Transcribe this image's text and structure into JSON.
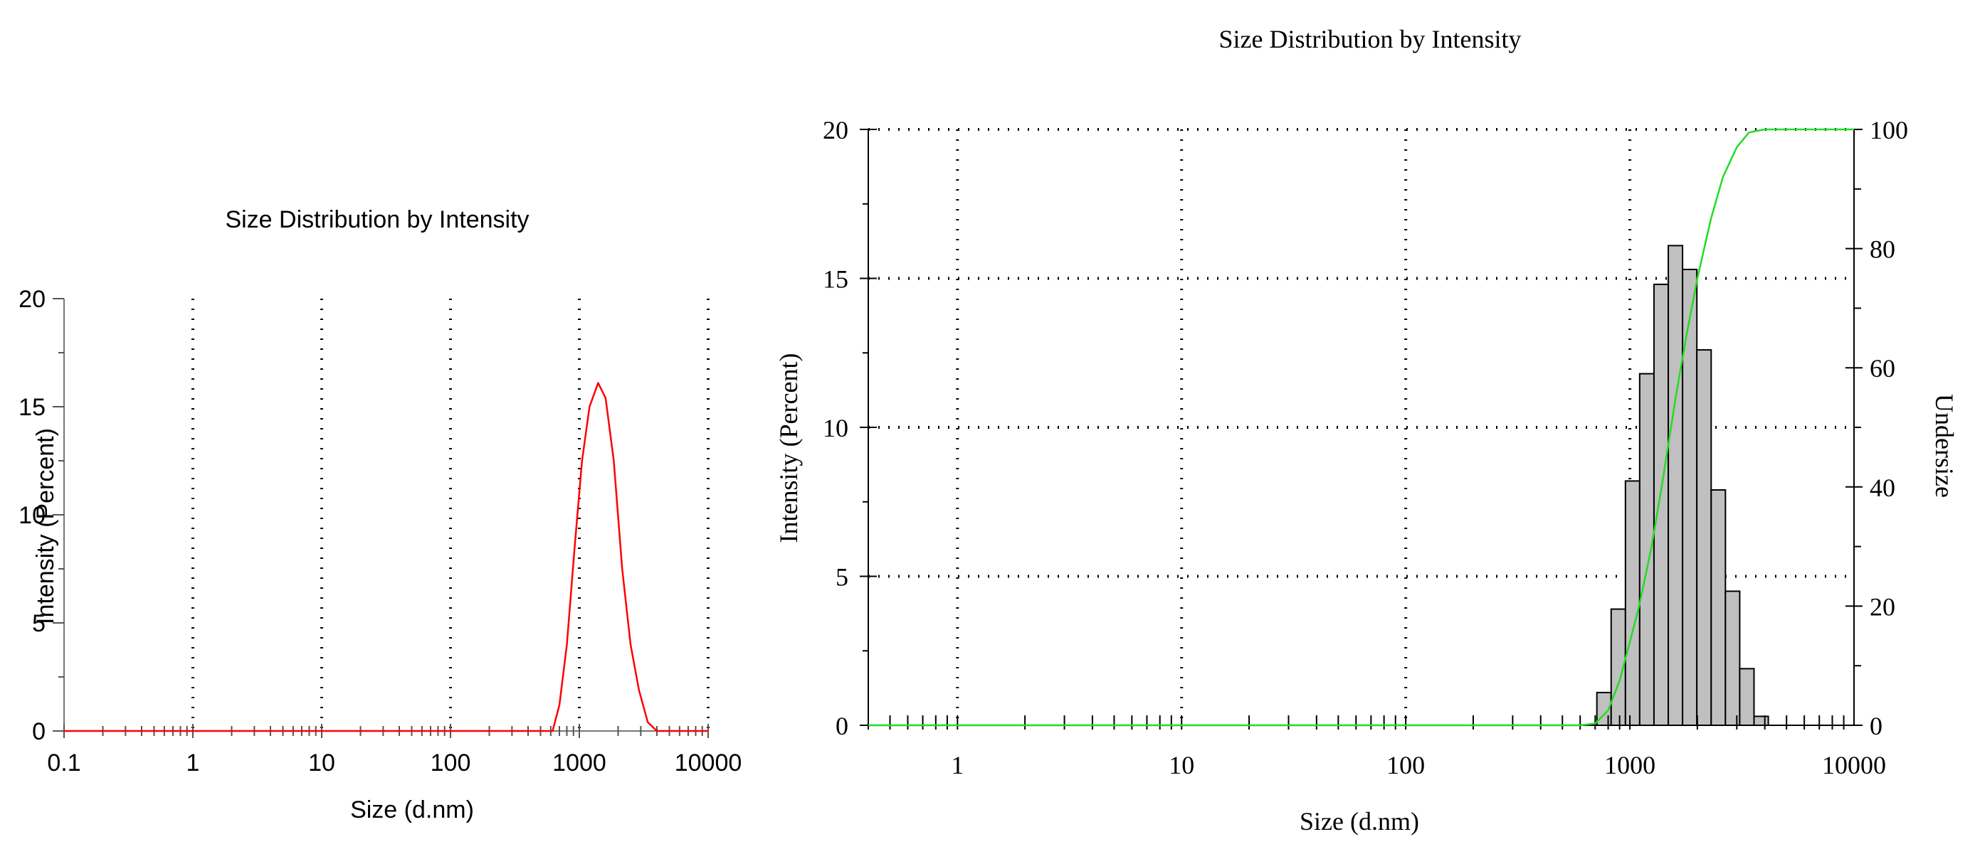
{
  "chart_data": [
    {
      "type": "line",
      "title": "Size Distribution by Intensity",
      "xlabel": "Size (d.nm)",
      "ylabel": "Intensity (Percent)",
      "xscale": "log",
      "xlim": [
        0.1,
        10000
      ],
      "ylim": [
        0,
        20
      ],
      "x_ticks": [
        "0.1",
        "1",
        "10",
        "100",
        "1000",
        "10000"
      ],
      "y_ticks": [
        "0",
        "5",
        "10",
        "15",
        "20"
      ],
      "grid": "vertical dotted lines at decades",
      "series": [
        {
          "color": "#ff0000",
          "x": [
            0.1,
            500,
            620,
            700,
            800,
            920,
            1050,
            1200,
            1400,
            1600,
            1850,
            2150,
            2500,
            2900,
            3400,
            4000,
            10000
          ],
          "y": [
            0,
            0,
            0,
            1.2,
            4.0,
            8.5,
            12.5,
            15.0,
            16.1,
            15.4,
            12.5,
            7.5,
            4.0,
            1.9,
            0.4,
            0,
            0
          ]
        }
      ]
    },
    {
      "type": "bar",
      "title": "Size Distribution by Intensity",
      "xlabel": "Size (d.nm)",
      "ylabel": "Intensity (Percent)",
      "y2label": "Undersize",
      "xscale": "log",
      "xlim": [
        0.4,
        10000
      ],
      "ylim": [
        0,
        20
      ],
      "y2lim": [
        0,
        100
      ],
      "x_ticks": [
        "1",
        "10",
        "100",
        "1000",
        "10000"
      ],
      "y_ticks": [
        "0",
        "5",
        "10",
        "15",
        "20"
      ],
      "y2_ticks": [
        "0",
        "20",
        "40",
        "60",
        "80",
        "100"
      ],
      "grid": "dotted, decades and every 5 percent",
      "bars": {
        "color": "#c0c0c0",
        "x": [
          615.1,
          712.4,
          825.0,
          955.4,
          1106.0,
          1281.0,
          1484.0,
          1718.0,
          1990.0,
          2305.0,
          2669.0,
          3091.0,
          3580.0
        ],
        "y": [
          0.0,
          1.1,
          3.9,
          8.2,
          11.8,
          14.8,
          16.1,
          15.3,
          12.6,
          7.9,
          4.5,
          1.9,
          0.3
        ]
      },
      "undersize": {
        "color": "#22dd22",
        "x": [
          0.4,
          600,
          700,
          800,
          900,
          1000,
          1100,
          1250,
          1400,
          1600,
          1800,
          2000,
          2300,
          2600,
          3000,
          3400,
          4000,
          10000
        ],
        "y": [
          0,
          0,
          0.3,
          2.5,
          7.5,
          14,
          20,
          30,
          41,
          55,
          66,
          75,
          85,
          92,
          97,
          99.5,
          100,
          100
        ]
      }
    }
  ]
}
